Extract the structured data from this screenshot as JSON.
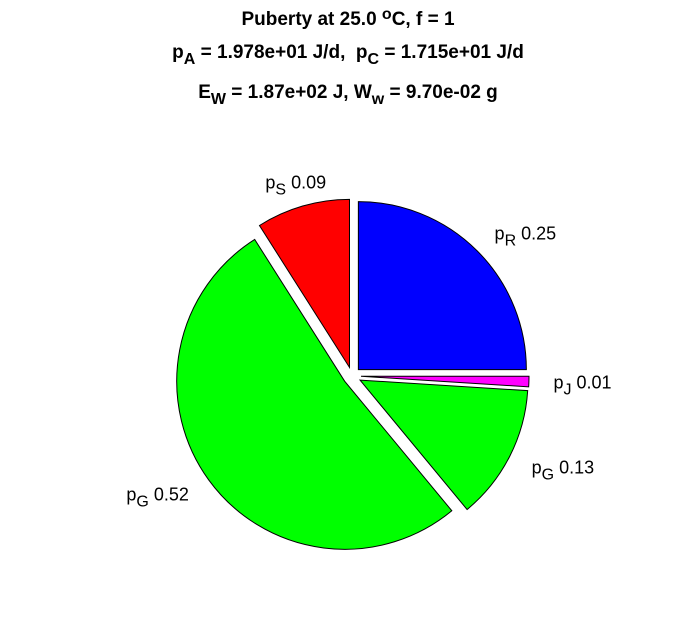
{
  "chart_data": {
    "type": "pie",
    "title": [
      [
        {
          "text": "Puberty at 25.0 "
        },
        {
          "text": "o",
          "script": "sup"
        },
        {
          "text": "C, f = 1"
        }
      ],
      [
        {
          "text": "p"
        },
        {
          "text": "A",
          "script": "sub"
        },
        {
          "text": " = 1.978e+01 J/d,  p"
        },
        {
          "text": "C",
          "script": "sub"
        },
        {
          "text": " = 1.715e+01 J/d"
        }
      ],
      [
        {
          "text": "E"
        },
        {
          "text": "W",
          "script": "sub"
        },
        {
          "text": " = 1.87e+02 J, W"
        },
        {
          "text": "w",
          "script": "sub"
        },
        {
          "text": " = 9.70e-02 g"
        }
      ]
    ],
    "categories": [
      {
        "text": "p",
        "sub": "R"
      },
      {
        "text": "p",
        "sub": "J"
      },
      {
        "text": "p",
        "sub": "G"
      },
      {
        "text": "p",
        "sub": "G"
      },
      {
        "text": "p",
        "sub": "S"
      }
    ],
    "values": [
      0.25,
      0.01,
      0.13,
      0.52,
      0.09
    ],
    "colors": [
      "#0000ff",
      "#ff00ff",
      "#00ff00",
      "#00ff00",
      "#ff0000"
    ],
    "exploded": true
  }
}
